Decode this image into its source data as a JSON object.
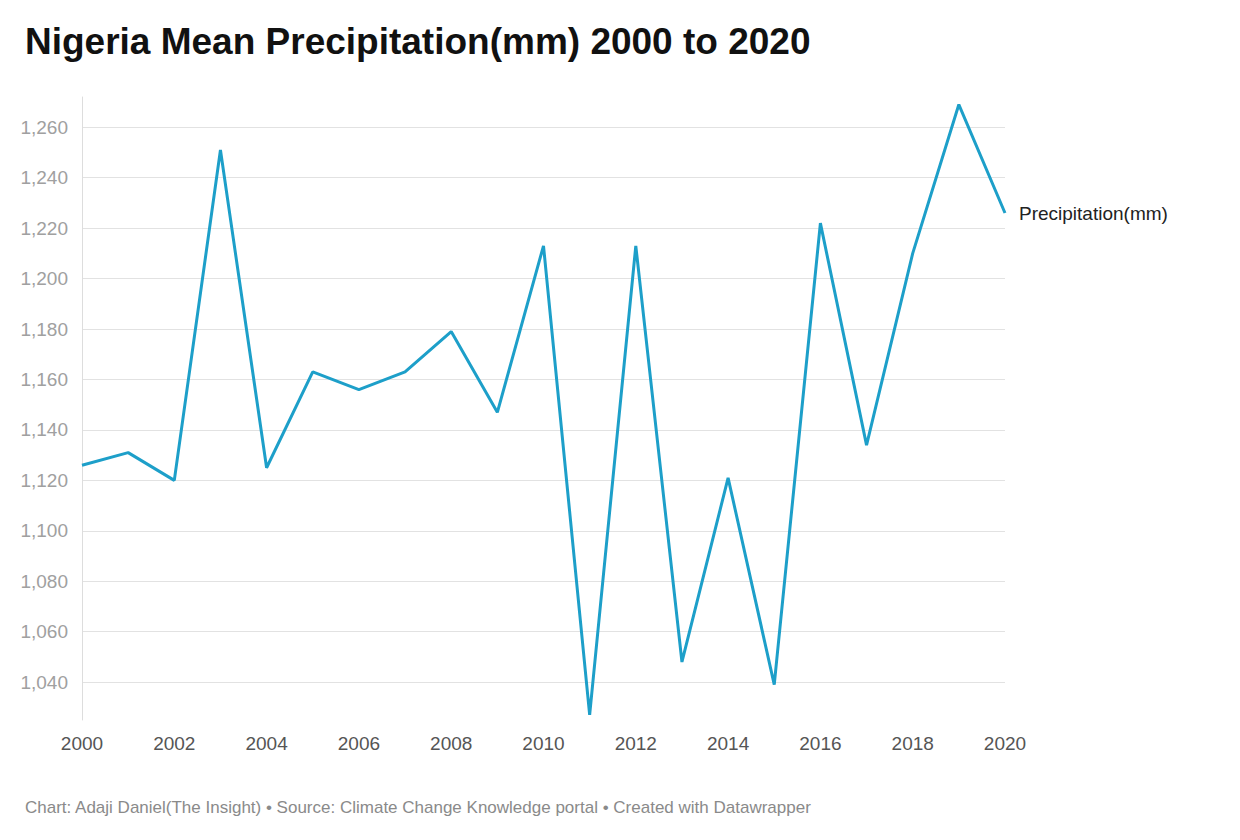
{
  "chart_data": {
    "type": "line",
    "title": "Nigeria Mean Precipitation(mm) 2000 to 2020",
    "source": "Chart: Adaji Daniel(The Insight) • Source: Climate Change Knowledge portal • Created with Datawrapper",
    "x": [
      2000,
      2001,
      2002,
      2003,
      2004,
      2005,
      2006,
      2007,
      2008,
      2009,
      2010,
      2011,
      2012,
      2013,
      2014,
      2015,
      2016,
      2017,
      2018,
      2019,
      2020
    ],
    "series": [
      {
        "name": "Precipitation(mm)",
        "color": "#1d9fc9",
        "values": [
          1126,
          1131,
          1120,
          1251,
          1125,
          1163,
          1156,
          1163,
          1179,
          1147,
          1213,
          1027,
          1213,
          1048,
          1121,
          1039,
          1222,
          1134,
          1210,
          1269,
          1226
        ]
      }
    ],
    "xlim": [
      2000,
      2020
    ],
    "xticks": [
      2000,
      2002,
      2004,
      2006,
      2008,
      2010,
      2012,
      2014,
      2016,
      2018,
      2020
    ],
    "ylim": [
      1025,
      1272
    ],
    "yticks": [
      {
        "value": 1040,
        "label": "1,040"
      },
      {
        "value": 1060,
        "label": "1,060"
      },
      {
        "value": 1080,
        "label": "1,080"
      },
      {
        "value": 1100,
        "label": "1,100"
      },
      {
        "value": 1120,
        "label": "1,120"
      },
      {
        "value": 1140,
        "label": "1,140"
      },
      {
        "value": 1160,
        "label": "1,160"
      },
      {
        "value": 1180,
        "label": "1,180"
      },
      {
        "value": 1200,
        "label": "1,200"
      },
      {
        "value": 1220,
        "label": "1,220"
      },
      {
        "value": 1240,
        "label": "1,240"
      },
      {
        "value": 1260,
        "label": "1,260"
      }
    ],
    "grid": true
  }
}
